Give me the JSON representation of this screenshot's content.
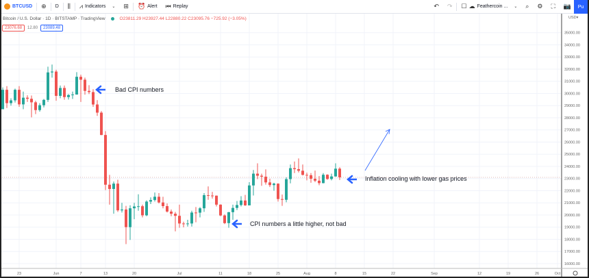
{
  "toolbar": {
    "symbol": "BTCUSD",
    "add_icon": "plus-circle-icon",
    "interval": "D",
    "chart_type_icon": "candles-icon",
    "indicators": "Indicators",
    "templates_icon": "grid-icon",
    "alert": "Alert",
    "replay": "Replay",
    "layout_name": "Feathercoin ...",
    "publish": "Pu"
  },
  "legend": {
    "title": "Bitcoin / U.S. Dollar · 1D · BITSTAMP · TradingView",
    "ohlc": "O23811.29 H23927.44 L22880.22 C23095.76 −725.92 (−3.05%)",
    "bid": "23076.68",
    "spread": "12.80",
    "ask": "23089.48"
  },
  "currency": "USD",
  "annotations": [
    {
      "text": "Bad CPI numbers"
    },
    {
      "text": "Inflation cooling with lower gas prices"
    },
    {
      "text": "CPI numbers a little higher, not bad"
    }
  ],
  "colors": {
    "up": "#26a69a",
    "down": "#ef5350",
    "arrow": "#2962ff",
    "grid": "#f0f3fa"
  },
  "chart_data": {
    "type": "candlestick",
    "interval": "1D",
    "start_date": "2022-05-19",
    "ylim": [
      15500,
      35500
    ],
    "y_ticks": [
      16000,
      17000,
      18000,
      19000,
      20000,
      21000,
      22000,
      23000,
      24000,
      25000,
      26000,
      27000,
      28000,
      29000,
      30000,
      31000,
      32000,
      33000,
      34000,
      35000
    ],
    "x_ticks": [
      {
        "label": "23",
        "date": "2022-05-23"
      },
      {
        "label": "Jun",
        "date": "2022-06-01"
      },
      {
        "label": "7",
        "date": "2022-06-07"
      },
      {
        "label": "13",
        "date": "2022-06-13"
      },
      {
        "label": "20",
        "date": "2022-06-20"
      },
      {
        "label": "Jul",
        "date": "2022-07-01"
      },
      {
        "label": "11",
        "date": "2022-07-11"
      },
      {
        "label": "18",
        "date": "2022-07-18"
      },
      {
        "label": "25",
        "date": "2022-07-25"
      },
      {
        "label": "Aug",
        "date": "2022-08-01"
      },
      {
        "label": "8",
        "date": "2022-08-08"
      },
      {
        "label": "15",
        "date": "2022-08-15"
      },
      {
        "label": "22",
        "date": "2022-08-22"
      },
      {
        "label": "Sep",
        "date": "2022-09-01"
      },
      {
        "label": "12",
        "date": "2022-09-12"
      },
      {
        "label": "19",
        "date": "2022-09-19"
      },
      {
        "label": "26",
        "date": "2022-09-26"
      },
      {
        "label": "Oct",
        "date": "2022-10-01"
      }
    ],
    "last_price": 23095.76,
    "ohlc": [
      [
        28700,
        30500,
        28700,
        30300
      ],
      [
        30300,
        30600,
        28800,
        29200
      ],
      [
        29200,
        29600,
        29000,
        29430
      ],
      [
        29430,
        30400,
        29250,
        30300
      ],
      [
        30300,
        30600,
        28900,
        29100
      ],
      [
        29100,
        30150,
        28700,
        29650
      ],
      [
        29650,
        29850,
        29300,
        29560
      ],
      [
        29560,
        29830,
        28030,
        29270
      ],
      [
        29270,
        29400,
        28300,
        28630
      ],
      [
        28630,
        29200,
        28500,
        29030
      ],
      [
        29030,
        29550,
        28850,
        29470
      ],
      [
        29470,
        32200,
        29300,
        31730
      ],
      [
        31730,
        32380,
        31300,
        31800
      ],
      [
        31800,
        31950,
        29400,
        29800
      ],
      [
        29800,
        30650,
        29600,
        30450
      ],
      [
        30450,
        30650,
        29480,
        29700
      ],
      [
        29700,
        29950,
        29500,
        29870
      ],
      [
        29870,
        30150,
        29550,
        29910
      ],
      [
        29910,
        31750,
        29900,
        31370
      ],
      [
        31370,
        31550,
        29300,
        31130
      ],
      [
        31130,
        31300,
        29900,
        30210
      ],
      [
        30210,
        30680,
        29950,
        30110
      ],
      [
        30110,
        30350,
        28900,
        29090
      ],
      [
        29090,
        29450,
        28150,
        28420
      ],
      [
        28420,
        28550,
        26570,
        26580
      ],
      [
        26580,
        26900,
        22050,
        22490
      ],
      [
        22490,
        23300,
        20850,
        22140
      ],
      [
        22140,
        22750,
        20100,
        22580
      ],
      [
        22580,
        22900,
        20250,
        20380
      ],
      [
        20380,
        21000,
        20200,
        20450
      ],
      [
        20450,
        20750,
        17600,
        19000
      ],
      [
        19000,
        20800,
        17950,
        20550
      ],
      [
        20550,
        21000,
        19650,
        20700
      ],
      [
        20700,
        21700,
        20350,
        20720
      ],
      [
        20720,
        20850,
        19800,
        19970
      ],
      [
        19970,
        21200,
        19900,
        21100
      ],
      [
        21100,
        21450,
        20900,
        21230
      ],
      [
        21230,
        21850,
        21100,
        21500
      ],
      [
        21500,
        21800,
        20950,
        21030
      ],
      [
        21030,
        21500,
        20550,
        20730
      ],
      [
        20730,
        20950,
        20200,
        20280
      ],
      [
        20280,
        20450,
        19900,
        20100
      ],
      [
        20100,
        20250,
        18650,
        19930
      ],
      [
        19930,
        20850,
        18950,
        19300
      ],
      [
        19300,
        19450,
        18980,
        19250
      ],
      [
        19250,
        19600,
        19050,
        19300
      ],
      [
        19300,
        20350,
        19050,
        20200
      ],
      [
        20200,
        20650,
        19400,
        20190
      ],
      [
        20190,
        20650,
        19800,
        20550
      ],
      [
        20550,
        21800,
        20250,
        21630
      ],
      [
        21630,
        22350,
        21250,
        21600
      ],
      [
        21600,
        21900,
        21350,
        21590
      ],
      [
        21590,
        21600,
        20700,
        20850
      ],
      [
        20850,
        20880,
        19900,
        19960
      ],
      [
        19960,
        20050,
        19250,
        19330
      ],
      [
        19330,
        20250,
        18950,
        20230
      ],
      [
        20230,
        20850,
        19600,
        20580
      ],
      [
        20580,
        21150,
        20400,
        20820
      ],
      [
        20820,
        21550,
        20700,
        21190
      ],
      [
        21190,
        21650,
        20750,
        20790
      ],
      [
        20790,
        22700,
        20800,
        22430
      ],
      [
        22430,
        23700,
        21600,
        23400
      ],
      [
        23400,
        24250,
        22950,
        23230
      ],
      [
        23230,
        23400,
        22400,
        23150
      ],
      [
        23150,
        23750,
        22500,
        22680
      ],
      [
        22680,
        22980,
        22300,
        22460
      ],
      [
        22460,
        22650,
        22000,
        22580
      ],
      [
        22580,
        22600,
        21100,
        21310
      ],
      [
        21310,
        21680,
        20750,
        21250
      ],
      [
        21250,
        23100,
        21050,
        22950
      ],
      [
        22950,
        24150,
        22600,
        23850
      ],
      [
        23850,
        24400,
        23450,
        23770
      ],
      [
        23770,
        24650,
        23500,
        23640
      ],
      [
        23640,
        24150,
        23250,
        23300
      ],
      [
        23300,
        23480,
        22850,
        23270
      ],
      [
        23270,
        23450,
        22650,
        22980
      ],
      [
        22980,
        23650,
        22700,
        22820
      ],
      [
        22820,
        23200,
        22450,
        22620
      ],
      [
        22620,
        23450,
        22600,
        23310
      ],
      [
        23310,
        23350,
        22900,
        22960
      ],
      [
        22960,
        23400,
        22850,
        23170
      ],
      [
        23170,
        24250,
        23150,
        23810
      ],
      [
        23811.29,
        23927.44,
        22880.22,
        23095.76
      ]
    ]
  }
}
